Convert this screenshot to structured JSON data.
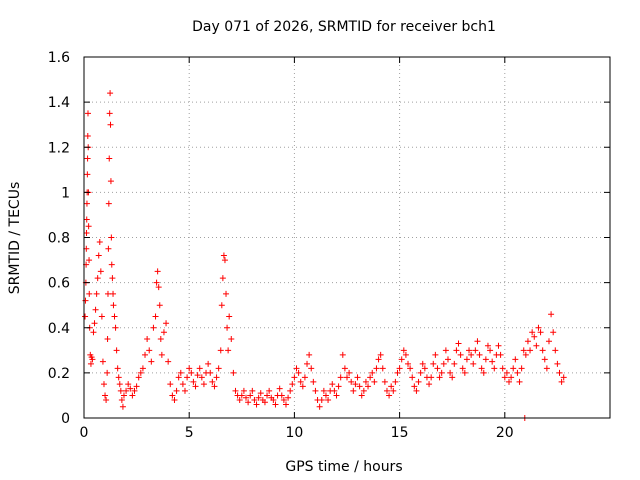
{
  "chart_data": {
    "type": "scatter",
    "title": "Day 071 of 2026, SRMTID for receiver bch1",
    "xlabel": "GPS time / hours",
    "ylabel": "SRMTID / TECUs",
    "xlim": [
      0,
      25
    ],
    "ylim": [
      0,
      1.6
    ],
    "x_ticks": [
      0,
      5,
      10,
      15,
      20
    ],
    "y_ticks": [
      0,
      0.2,
      0.4,
      0.6,
      0.8,
      1,
      1.2,
      1.4,
      1.6
    ],
    "x_tick_labels": [
      "0",
      "5",
      "10",
      "15",
      "20"
    ],
    "y_tick_labels": [
      "0",
      "0.2",
      "0.4",
      "0.6",
      "0.8",
      "1",
      "1.2",
      "1.4",
      "1.6"
    ],
    "grid": true,
    "marker": "+",
    "color": "#ff0000",
    "series": [
      {
        "name": "bch1",
        "points": [
          [
            0.05,
            0.45
          ],
          [
            0.07,
            0.52
          ],
          [
            0.09,
            0.6
          ],
          [
            0.1,
            0.68
          ],
          [
            0.11,
            0.75
          ],
          [
            0.12,
            0.82
          ],
          [
            0.13,
            0.88
          ],
          [
            0.14,
            0.95
          ],
          [
            0.15,
            1.0
          ],
          [
            0.16,
            1.08
          ],
          [
            0.17,
            1.15
          ],
          [
            0.18,
            1.25
          ],
          [
            0.19,
            1.35
          ],
          [
            0.2,
            1.2
          ],
          [
            0.21,
            1.0
          ],
          [
            0.22,
            0.85
          ],
          [
            0.24,
            0.7
          ],
          [
            0.25,
            0.55
          ],
          [
            0.27,
            0.4
          ],
          [
            0.3,
            0.28
          ],
          [
            0.33,
            0.24
          ],
          [
            0.36,
            0.27
          ],
          [
            0.4,
            0.26
          ],
          [
            0.45,
            0.38
          ],
          [
            0.5,
            0.42
          ],
          [
            0.55,
            0.48
          ],
          [
            0.6,
            0.55
          ],
          [
            0.65,
            0.62
          ],
          [
            0.7,
            0.72
          ],
          [
            0.75,
            0.78
          ],
          [
            0.8,
            0.65
          ],
          [
            0.85,
            0.45
          ],
          [
            0.9,
            0.25
          ],
          [
            0.95,
            0.15
          ],
          [
            1.0,
            0.1
          ],
          [
            1.05,
            0.08
          ],
          [
            1.1,
            0.2
          ],
          [
            1.12,
            0.35
          ],
          [
            1.14,
            0.55
          ],
          [
            1.16,
            0.75
          ],
          [
            1.18,
            0.95
          ],
          [
            1.2,
            1.15
          ],
          [
            1.22,
            1.35
          ],
          [
            1.24,
            1.44
          ],
          [
            1.26,
            1.3
          ],
          [
            1.28,
            1.05
          ],
          [
            1.3,
            0.8
          ],
          [
            1.32,
            0.68
          ],
          [
            1.35,
            0.62
          ],
          [
            1.38,
            0.55
          ],
          [
            1.4,
            0.5
          ],
          [
            1.45,
            0.45
          ],
          [
            1.5,
            0.4
          ],
          [
            1.55,
            0.3
          ],
          [
            1.6,
            0.22
          ],
          [
            1.65,
            0.18
          ],
          [
            1.7,
            0.15
          ],
          [
            1.75,
            0.12
          ],
          [
            1.8,
            0.08
          ],
          [
            1.85,
            0.05
          ],
          [
            1.9,
            0.1
          ],
          [
            2.0,
            0.12
          ],
          [
            2.1,
            0.15
          ],
          [
            2.2,
            0.13
          ],
          [
            2.3,
            0.1
          ],
          [
            2.4,
            0.12
          ],
          [
            2.5,
            0.14
          ],
          [
            2.6,
            0.18
          ],
          [
            2.7,
            0.2
          ],
          [
            2.8,
            0.22
          ],
          [
            2.9,
            0.28
          ],
          [
            3.0,
            0.35
          ],
          [
            3.1,
            0.3
          ],
          [
            3.2,
            0.25
          ],
          [
            3.3,
            0.4
          ],
          [
            3.4,
            0.45
          ],
          [
            3.45,
            0.6
          ],
          [
            3.5,
            0.65
          ],
          [
            3.55,
            0.58
          ],
          [
            3.6,
            0.5
          ],
          [
            3.65,
            0.35
          ],
          [
            3.7,
            0.28
          ],
          [
            3.8,
            0.38
          ],
          [
            3.9,
            0.42
          ],
          [
            4.0,
            0.25
          ],
          [
            4.1,
            0.15
          ],
          [
            4.2,
            0.1
          ],
          [
            4.3,
            0.08
          ],
          [
            4.4,
            0.12
          ],
          [
            4.5,
            0.18
          ],
          [
            4.6,
            0.2
          ],
          [
            4.7,
            0.15
          ],
          [
            4.8,
            0.12
          ],
          [
            4.9,
            0.18
          ],
          [
            5.0,
            0.22
          ],
          [
            5.1,
            0.2
          ],
          [
            5.2,
            0.16
          ],
          [
            5.3,
            0.14
          ],
          [
            5.4,
            0.19
          ],
          [
            5.5,
            0.22
          ],
          [
            5.6,
            0.18
          ],
          [
            5.7,
            0.15
          ],
          [
            5.8,
            0.2
          ],
          [
            5.9,
            0.24
          ],
          [
            6.0,
            0.2
          ],
          [
            6.1,
            0.16
          ],
          [
            6.2,
            0.14
          ],
          [
            6.3,
            0.18
          ],
          [
            6.4,
            0.22
          ],
          [
            6.5,
            0.3
          ],
          [
            6.55,
            0.5
          ],
          [
            6.6,
            0.62
          ],
          [
            6.65,
            0.72
          ],
          [
            6.7,
            0.7
          ],
          [
            6.75,
            0.55
          ],
          [
            6.8,
            0.4
          ],
          [
            6.85,
            0.3
          ],
          [
            6.9,
            0.45
          ],
          [
            7.0,
            0.35
          ],
          [
            7.1,
            0.2
          ],
          [
            7.2,
            0.12
          ],
          [
            7.3,
            0.1
          ],
          [
            7.4,
            0.08
          ],
          [
            7.5,
            0.1
          ],
          [
            7.6,
            0.12
          ],
          [
            7.7,
            0.09
          ],
          [
            7.8,
            0.07
          ],
          [
            7.9,
            0.1
          ],
          [
            8.0,
            0.12
          ],
          [
            8.1,
            0.08
          ],
          [
            8.2,
            0.06
          ],
          [
            8.3,
            0.09
          ],
          [
            8.4,
            0.11
          ],
          [
            8.5,
            0.08
          ],
          [
            8.6,
            0.07
          ],
          [
            8.7,
            0.1
          ],
          [
            8.8,
            0.12
          ],
          [
            8.9,
            0.09
          ],
          [
            9.0,
            0.08
          ],
          [
            9.1,
            0.06
          ],
          [
            9.2,
            0.1
          ],
          [
            9.3,
            0.13
          ],
          [
            9.4,
            0.1
          ],
          [
            9.5,
            0.08
          ],
          [
            9.6,
            0.06
          ],
          [
            9.7,
            0.09
          ],
          [
            9.8,
            0.12
          ],
          [
            9.9,
            0.15
          ],
          [
            10.0,
            0.18
          ],
          [
            10.1,
            0.22
          ],
          [
            10.2,
            0.2
          ],
          [
            10.3,
            0.16
          ],
          [
            10.4,
            0.14
          ],
          [
            10.5,
            0.18
          ],
          [
            10.6,
            0.24
          ],
          [
            10.7,
            0.28
          ],
          [
            10.8,
            0.22
          ],
          [
            10.9,
            0.16
          ],
          [
            11.0,
            0.12
          ],
          [
            11.1,
            0.08
          ],
          [
            11.2,
            0.05
          ],
          [
            11.3,
            0.08
          ],
          [
            11.4,
            0.12
          ],
          [
            11.5,
            0.1
          ],
          [
            11.6,
            0.08
          ],
          [
            11.7,
            0.12
          ],
          [
            11.8,
            0.15
          ],
          [
            11.9,
            0.12
          ],
          [
            12.0,
            0.1
          ],
          [
            12.1,
            0.14
          ],
          [
            12.2,
            0.18
          ],
          [
            12.3,
            0.28
          ],
          [
            12.4,
            0.22
          ],
          [
            12.5,
            0.18
          ],
          [
            12.6,
            0.2
          ],
          [
            12.7,
            0.16
          ],
          [
            12.8,
            0.12
          ],
          [
            12.9,
            0.15
          ],
          [
            13.0,
            0.18
          ],
          [
            13.1,
            0.14
          ],
          [
            13.2,
            0.1
          ],
          [
            13.3,
            0.12
          ],
          [
            13.4,
            0.16
          ],
          [
            13.5,
            0.14
          ],
          [
            13.6,
            0.18
          ],
          [
            13.7,
            0.2
          ],
          [
            13.8,
            0.16
          ],
          [
            13.9,
            0.22
          ],
          [
            14.0,
            0.26
          ],
          [
            14.1,
            0.28
          ],
          [
            14.2,
            0.22
          ],
          [
            14.3,
            0.16
          ],
          [
            14.4,
            0.12
          ],
          [
            14.5,
            0.1
          ],
          [
            14.6,
            0.14
          ],
          [
            14.7,
            0.12
          ],
          [
            14.8,
            0.16
          ],
          [
            14.9,
            0.2
          ],
          [
            15.0,
            0.22
          ],
          [
            15.1,
            0.26
          ],
          [
            15.2,
            0.3
          ],
          [
            15.3,
            0.28
          ],
          [
            15.4,
            0.24
          ],
          [
            15.5,
            0.22
          ],
          [
            15.6,
            0.18
          ],
          [
            15.7,
            0.14
          ],
          [
            15.8,
            0.12
          ],
          [
            15.9,
            0.16
          ],
          [
            16.0,
            0.2
          ],
          [
            16.1,
            0.24
          ],
          [
            16.2,
            0.22
          ],
          [
            16.3,
            0.18
          ],
          [
            16.4,
            0.15
          ],
          [
            16.5,
            0.18
          ],
          [
            16.6,
            0.24
          ],
          [
            16.7,
            0.28
          ],
          [
            16.8,
            0.22
          ],
          [
            16.9,
            0.18
          ],
          [
            17.0,
            0.2
          ],
          [
            17.1,
            0.24
          ],
          [
            17.2,
            0.3
          ],
          [
            17.3,
            0.26
          ],
          [
            17.4,
            0.2
          ],
          [
            17.5,
            0.18
          ],
          [
            17.6,
            0.24
          ],
          [
            17.7,
            0.3
          ],
          [
            17.8,
            0.33
          ],
          [
            17.9,
            0.28
          ],
          [
            18.0,
            0.22
          ],
          [
            18.1,
            0.2
          ],
          [
            18.2,
            0.26
          ],
          [
            18.3,
            0.3
          ],
          [
            18.4,
            0.28
          ],
          [
            18.5,
            0.24
          ],
          [
            18.6,
            0.3
          ],
          [
            18.7,
            0.34
          ],
          [
            18.8,
            0.28
          ],
          [
            18.9,
            0.22
          ],
          [
            19.0,
            0.2
          ],
          [
            19.1,
            0.26
          ],
          [
            19.2,
            0.32
          ],
          [
            19.3,
            0.3
          ],
          [
            19.4,
            0.25
          ],
          [
            19.5,
            0.22
          ],
          [
            19.6,
            0.28
          ],
          [
            19.7,
            0.32
          ],
          [
            19.8,
            0.28
          ],
          [
            19.9,
            0.22
          ],
          [
            20.0,
            0.18
          ],
          [
            20.1,
            0.2
          ],
          [
            20.2,
            0.16
          ],
          [
            20.3,
            0.18
          ],
          [
            20.4,
            0.22
          ],
          [
            20.5,
            0.26
          ],
          [
            20.6,
            0.2
          ],
          [
            20.7,
            0.16
          ],
          [
            20.8,
            0.22
          ],
          [
            20.9,
            0.3
          ],
          [
            20.95,
            0.0
          ],
          [
            21.0,
            0.28
          ],
          [
            21.1,
            0.34
          ],
          [
            21.2,
            0.3
          ],
          [
            21.3,
            0.38
          ],
          [
            21.4,
            0.36
          ],
          [
            21.5,
            0.32
          ],
          [
            21.6,
            0.4
          ],
          [
            21.7,
            0.38
          ],
          [
            21.8,
            0.3
          ],
          [
            21.9,
            0.26
          ],
          [
            22.0,
            0.22
          ],
          [
            22.1,
            0.34
          ],
          [
            22.2,
            0.46
          ],
          [
            22.3,
            0.38
          ],
          [
            22.4,
            0.3
          ],
          [
            22.5,
            0.24
          ],
          [
            22.6,
            0.2
          ],
          [
            22.7,
            0.16
          ],
          [
            22.8,
            0.18
          ]
        ]
      }
    ]
  }
}
